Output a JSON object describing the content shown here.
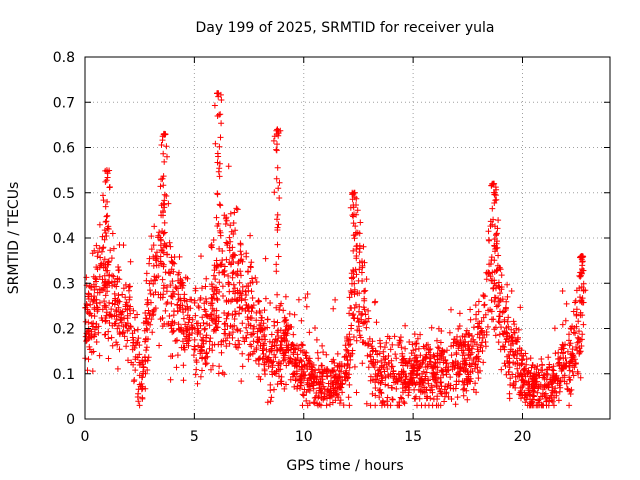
{
  "chart_data": {
    "type": "scatter",
    "title": "Day 199 of 2025, SRMTID for receiver yula",
    "xlabel": "GPS time / hours",
    "ylabel": "SRMTID / TECUs",
    "xlim": [
      0,
      24
    ],
    "ylim": [
      0,
      0.8
    ],
    "xticks": [
      0,
      5,
      10,
      15,
      20
    ],
    "yticks": [
      0,
      0.1,
      0.2,
      0.3,
      0.4,
      0.5,
      0.6,
      0.7,
      0.8
    ],
    "xtick_labels": [
      "0",
      "5",
      "10",
      "15",
      "20"
    ],
    "ytick_labels": [
      "0",
      "0.1",
      "0.2",
      "0.3",
      "0.4",
      "0.5",
      "0.6",
      "0.7",
      "0.8"
    ],
    "grid": true,
    "marker": "+",
    "color": "#ff0000",
    "envelope": {
      "x": [
        0,
        0.3,
        0.6,
        0.8,
        1.0,
        1.3,
        1.6,
        2.0,
        2.3,
        2.6,
        3.0,
        3.3,
        3.6,
        3.9,
        4.2,
        4.5,
        5.0,
        5.3,
        5.6,
        5.9,
        6.2,
        6.5,
        6.8,
        7.1,
        7.4,
        7.7,
        8.0,
        8.3,
        8.6,
        8.9,
        9.2,
        9.5,
        9.8,
        10.2,
        10.6,
        11.0,
        11.4,
        11.8,
        12.1,
        12.4,
        12.7,
        13.0,
        13.3,
        13.6,
        14.0,
        14.5,
        15.0,
        15.5,
        16.0,
        16.5,
        17.0,
        17.4,
        17.8,
        18.2,
        18.5,
        18.7,
        18.9,
        19.2,
        19.5,
        19.8,
        20.1,
        20.4,
        20.8,
        21.2,
        21.6,
        22.0,
        22.3,
        22.6,
        22.8
      ],
      "center": [
        0.2,
        0.22,
        0.28,
        0.33,
        0.3,
        0.26,
        0.24,
        0.22,
        0.15,
        0.1,
        0.25,
        0.33,
        0.36,
        0.3,
        0.23,
        0.21,
        0.2,
        0.18,
        0.2,
        0.25,
        0.3,
        0.28,
        0.3,
        0.27,
        0.25,
        0.22,
        0.18,
        0.16,
        0.14,
        0.15,
        0.18,
        0.13,
        0.1,
        0.09,
        0.08,
        0.08,
        0.08,
        0.09,
        0.15,
        0.3,
        0.25,
        0.14,
        0.1,
        0.1,
        0.1,
        0.1,
        0.1,
        0.1,
        0.1,
        0.1,
        0.12,
        0.13,
        0.14,
        0.2,
        0.3,
        0.33,
        0.27,
        0.18,
        0.15,
        0.12,
        0.08,
        0.07,
        0.07,
        0.07,
        0.09,
        0.11,
        0.13,
        0.2,
        0.26
      ],
      "spread": [
        0.05,
        0.06,
        0.07,
        0.08,
        0.07,
        0.06,
        0.05,
        0.05,
        0.05,
        0.04,
        0.06,
        0.08,
        0.09,
        0.08,
        0.06,
        0.05,
        0.05,
        0.05,
        0.06,
        0.08,
        0.09,
        0.08,
        0.08,
        0.07,
        0.06,
        0.06,
        0.05,
        0.05,
        0.04,
        0.05,
        0.05,
        0.04,
        0.03,
        0.03,
        0.03,
        0.03,
        0.03,
        0.03,
        0.05,
        0.08,
        0.07,
        0.05,
        0.04,
        0.04,
        0.04,
        0.04,
        0.03,
        0.04,
        0.04,
        0.04,
        0.04,
        0.04,
        0.05,
        0.06,
        0.07,
        0.08,
        0.07,
        0.05,
        0.05,
        0.04,
        0.03,
        0.03,
        0.03,
        0.03,
        0.03,
        0.04,
        0.05,
        0.06,
        0.07
      ],
      "count": 2600,
      "seed": 199
    },
    "peaks": [
      {
        "x": 1.0,
        "y": 0.55
      },
      {
        "x": 3.6,
        "y": 0.63
      },
      {
        "x": 6.1,
        "y": 0.72
      },
      {
        "x": 8.8,
        "y": 0.64
      },
      {
        "x": 12.3,
        "y": 0.5
      },
      {
        "x": 18.7,
        "y": 0.52
      },
      {
        "x": 22.7,
        "y": 0.36
      }
    ]
  }
}
